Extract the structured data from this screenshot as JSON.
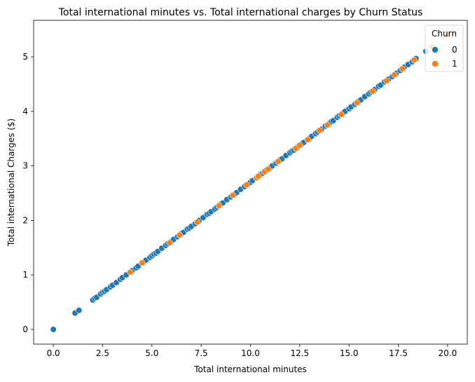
{
  "chart_data": {
    "type": "scatter",
    "title": "Total international minutes vs. Total international charges by Churn Status",
    "xlabel": "Total international minutes",
    "ylabel": "Total international Charges ($)",
    "xlim": [
      -1,
      21
    ],
    "ylim": [
      -0.27,
      5.67
    ],
    "xticks": [
      0,
      2.5,
      5,
      7.5,
      10,
      12.5,
      15,
      17.5,
      20
    ],
    "xtick_labels": [
      "0.0",
      "2.5",
      "5.0",
      "7.5",
      "10.0",
      "12.5",
      "15.0",
      "17.5",
      "20.0"
    ],
    "yticks": [
      0,
      1,
      2,
      3,
      4,
      5
    ],
    "ytick_labels": [
      "0",
      "1",
      "2",
      "3",
      "4",
      "5"
    ],
    "grid": false,
    "legend": {
      "title": "Churn",
      "placement": "top-right"
    },
    "series": [
      {
        "name": "0",
        "color": "#1f77b4",
        "x": [
          0.0,
          1.1,
          1.3,
          2.0,
          2.1,
          2.2,
          2.4,
          2.5,
          2.6,
          2.7,
          2.9,
          3.0,
          3.2,
          3.4,
          3.5,
          3.7,
          4.0,
          4.2,
          4.3,
          4.5,
          4.6,
          4.7,
          4.9,
          5.0,
          5.1,
          5.2,
          5.3,
          5.5,
          5.7,
          5.8,
          6.0,
          6.1,
          6.3,
          6.5,
          6.6,
          6.8,
          6.9,
          7.0,
          7.2,
          7.4,
          7.6,
          7.8,
          7.9,
          8.0,
          8.2,
          8.3,
          8.5,
          8.6,
          8.8,
          9.0,
          9.2,
          9.3,
          9.5,
          9.7,
          9.9,
          10.0,
          10.1,
          10.3,
          10.5,
          10.6,
          10.8,
          11.0,
          11.1,
          11.3,
          11.5,
          11.6,
          11.8,
          12.0,
          12.1,
          12.2,
          12.4,
          12.6,
          12.7,
          13.0,
          13.1,
          13.3,
          13.4,
          13.6,
          13.8,
          14.0,
          14.1,
          14.2,
          14.4,
          14.5,
          14.7,
          14.8,
          15.0,
          15.1,
          15.3,
          15.5,
          15.6,
          15.8,
          16.0,
          16.1,
          16.3,
          16.5,
          16.6,
          16.8,
          17.0,
          17.2,
          17.4,
          17.6,
          17.8,
          18.0,
          18.2,
          18.4,
          18.9
        ],
        "y": [
          0.0,
          0.3,
          0.35,
          0.54,
          0.57,
          0.59,
          0.65,
          0.68,
          0.7,
          0.73,
          0.78,
          0.81,
          0.86,
          0.92,
          0.95,
          1.0,
          1.08,
          1.13,
          1.16,
          1.22,
          1.24,
          1.27,
          1.32,
          1.35,
          1.38,
          1.4,
          1.43,
          1.49,
          1.54,
          1.57,
          1.62,
          1.65,
          1.7,
          1.76,
          1.78,
          1.84,
          1.86,
          1.89,
          1.94,
          2.0,
          2.05,
          2.11,
          2.13,
          2.16,
          2.21,
          2.24,
          2.3,
          2.32,
          2.38,
          2.43,
          2.48,
          2.51,
          2.57,
          2.62,
          2.67,
          2.7,
          2.73,
          2.78,
          2.84,
          2.86,
          2.92,
          2.97,
          3.0,
          3.05,
          3.11,
          3.13,
          3.19,
          3.24,
          3.27,
          3.29,
          3.35,
          3.4,
          3.43,
          3.51,
          3.54,
          3.59,
          3.62,
          3.67,
          3.73,
          3.78,
          3.81,
          3.83,
          3.89,
          3.92,
          3.97,
          4.0,
          4.05,
          4.08,
          4.13,
          4.19,
          4.21,
          4.27,
          4.32,
          4.35,
          4.4,
          4.46,
          4.48,
          4.54,
          4.59,
          4.64,
          4.7,
          4.75,
          4.81,
          4.86,
          4.91,
          4.97,
          5.1
        ]
      },
      {
        "name": "1",
        "color": "#ff7f0e",
        "x": [
          3.9,
          4.5,
          5.9,
          6.4,
          7.3,
          8.4,
          9.1,
          9.8,
          10.3,
          10.4,
          10.7,
          10.9,
          11.4,
          12.3,
          12.5,
          12.9,
          13.5,
          13.9,
          14.6,
          15.4,
          16.2,
          16.9,
          17.3,
          17.7,
          18.3,
          19.2,
          20.0
        ],
        "y": [
          1.05,
          1.22,
          1.59,
          1.73,
          1.97,
          2.27,
          2.46,
          2.65,
          2.78,
          2.81,
          2.89,
          2.94,
          3.08,
          3.32,
          3.38,
          3.48,
          3.65,
          3.75,
          3.94,
          4.16,
          4.37,
          4.56,
          4.67,
          4.78,
          4.94,
          5.18,
          5.4
        ]
      }
    ]
  }
}
